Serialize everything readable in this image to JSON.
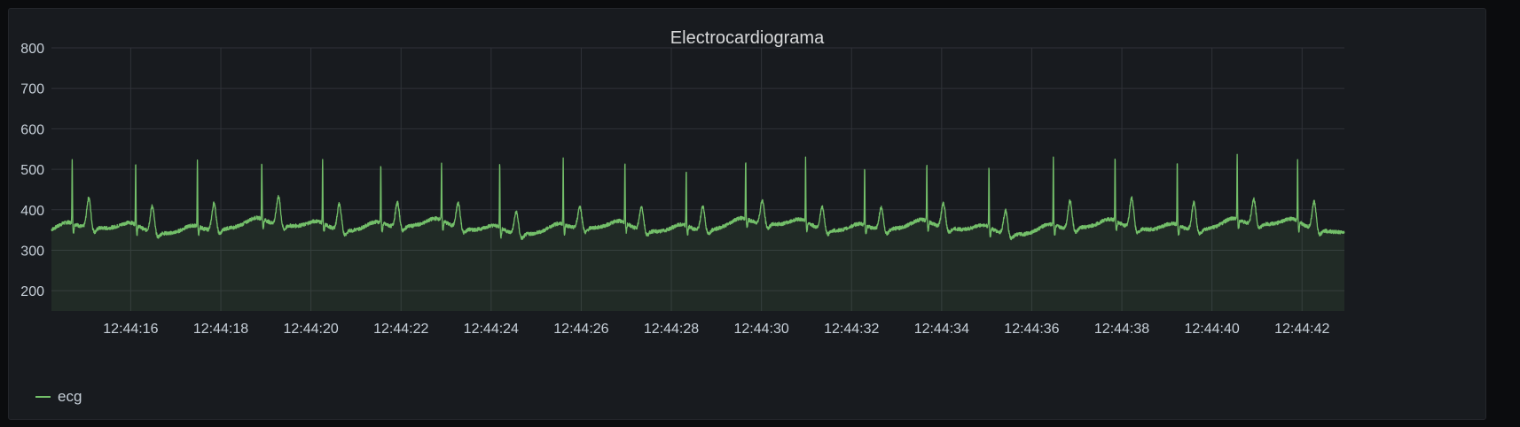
{
  "panel": {
    "title": "Electrocardiograma"
  },
  "colors": {
    "series": "#73bf69",
    "grid": "#2f3238",
    "axis_text": "#c7d0d9"
  },
  "chart_data": {
    "type": "line",
    "title": "Electrocardiograma",
    "xlabel": "",
    "ylabel": "",
    "ylim": [
      150,
      800
    ],
    "y_ticks": [
      200,
      300,
      400,
      500,
      600,
      700,
      800
    ],
    "x_range_seconds": [
      44.24,
      72.94
    ],
    "x_ticks": [
      {
        "s": 46,
        "label": "12:44:16"
      },
      {
        "s": 48,
        "label": "12:44:18"
      },
      {
        "s": 50,
        "label": "12:44:20"
      },
      {
        "s": 52,
        "label": "12:44:22"
      },
      {
        "s": 54,
        "label": "12:44:24"
      },
      {
        "s": 56,
        "label": "12:44:26"
      },
      {
        "s": 58,
        "label": "12:44:28"
      },
      {
        "s": 60,
        "label": "12:44:30"
      },
      {
        "s": 62,
        "label": "12:44:32"
      },
      {
        "s": 64,
        "label": "12:44:34"
      },
      {
        "s": 66,
        "label": "12:44:36"
      },
      {
        "s": 68,
        "label": "12:44:38"
      },
      {
        "s": 70,
        "label": "12:44:40"
      },
      {
        "s": 72,
        "label": "12:44:42"
      }
    ],
    "grid": true,
    "fill_area": true,
    "legend": "bottom-left",
    "baseline_range": [
      330,
      380
    ],
    "series": [
      {
        "name": "ecg",
        "color": "#73bf69",
        "beats": [
          {
            "r_s": 44.7,
            "r_peak": 532,
            "t_peak": 435
          },
          {
            "r_s": 46.11,
            "r_peak": 530,
            "t_peak": 425
          },
          {
            "r_s": 47.48,
            "r_peak": 538,
            "t_peak": 428
          },
          {
            "r_s": 48.91,
            "r_peak": 515,
            "t_peak": 430
          },
          {
            "r_s": 50.26,
            "r_peak": 532,
            "t_peak": 425
          },
          {
            "r_s": 51.55,
            "r_peak": 520,
            "t_peak": 420
          },
          {
            "r_s": 52.9,
            "r_peak": 515,
            "t_peak": 422
          },
          {
            "r_s": 54.19,
            "r_peak": 532,
            "t_peak": 415
          },
          {
            "r_s": 55.6,
            "r_peak": 535,
            "t_peak": 415
          },
          {
            "r_s": 56.97,
            "r_peak": 520,
            "t_peak": 418
          },
          {
            "r_s": 58.33,
            "r_peak": 510,
            "t_peak": 420
          },
          {
            "r_s": 59.65,
            "r_peak": 517,
            "t_peak": 418
          },
          {
            "r_s": 60.98,
            "r_peak": 525,
            "t_peak": 415
          },
          {
            "r_s": 62.29,
            "r_peak": 515,
            "t_peak": 415
          },
          {
            "r_s": 63.67,
            "r_peak": 512,
            "t_peak": 420
          },
          {
            "r_s": 65.05,
            "r_peak": 522,
            "t_peak": 418
          },
          {
            "r_s": 66.48,
            "r_peak": 542,
            "t_peak": 430
          },
          {
            "r_s": 67.85,
            "r_peak": 527,
            "t_peak": 435
          },
          {
            "r_s": 69.23,
            "r_peak": 530,
            "t_peak": 428
          },
          {
            "r_s": 70.56,
            "r_peak": 530,
            "t_peak": 422
          },
          {
            "r_s": 71.9,
            "r_peak": 520,
            "t_peak": 428
          }
        ]
      }
    ]
  }
}
